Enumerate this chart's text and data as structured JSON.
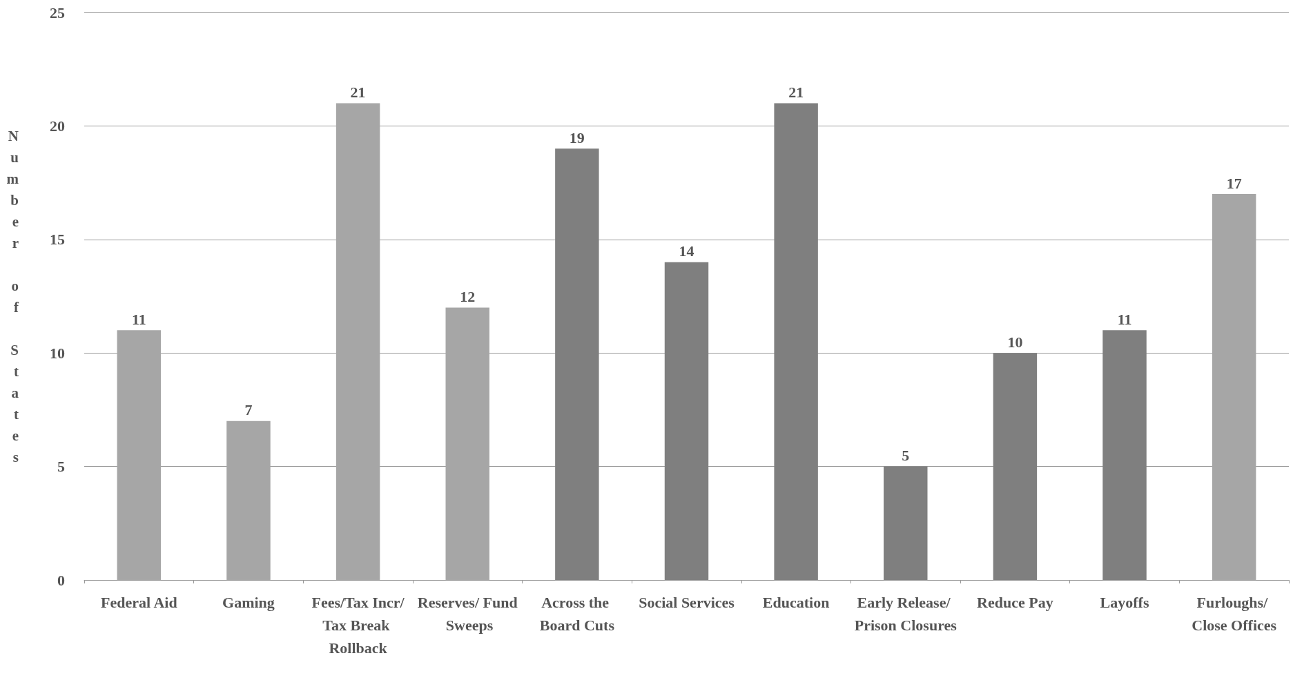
{
  "chart_data": {
    "type": "bar",
    "ylabel": "Number of States",
    "categories": [
      "Federal Aid",
      "Gaming",
      "Fees/Tax Incr/Tax Break Rollback",
      "Reserves/ Fund Sweeps",
      "Across the Board Cuts",
      "Social Services",
      "Education",
      "Early Release/ Prison Closures",
      "Reduce Pay",
      "Layoffs",
      "Furloughs/ Close Offices"
    ],
    "values": [
      11,
      7,
      21,
      12,
      19,
      14,
      21,
      5,
      10,
      11,
      17
    ],
    "colors": [
      "#a6a6a6",
      "#a6a6a6",
      "#a6a6a6",
      "#a6a6a6",
      "#7f7f7f",
      "#7f7f7f",
      "#7f7f7f",
      "#7f7f7f",
      "#7f7f7f",
      "#7f7f7f",
      "#a6a6a6"
    ],
    "ylim": [
      0,
      25
    ],
    "yticks": [
      0,
      5,
      10,
      15,
      20,
      25
    ],
    "grid": "y",
    "data_labels": true
  }
}
